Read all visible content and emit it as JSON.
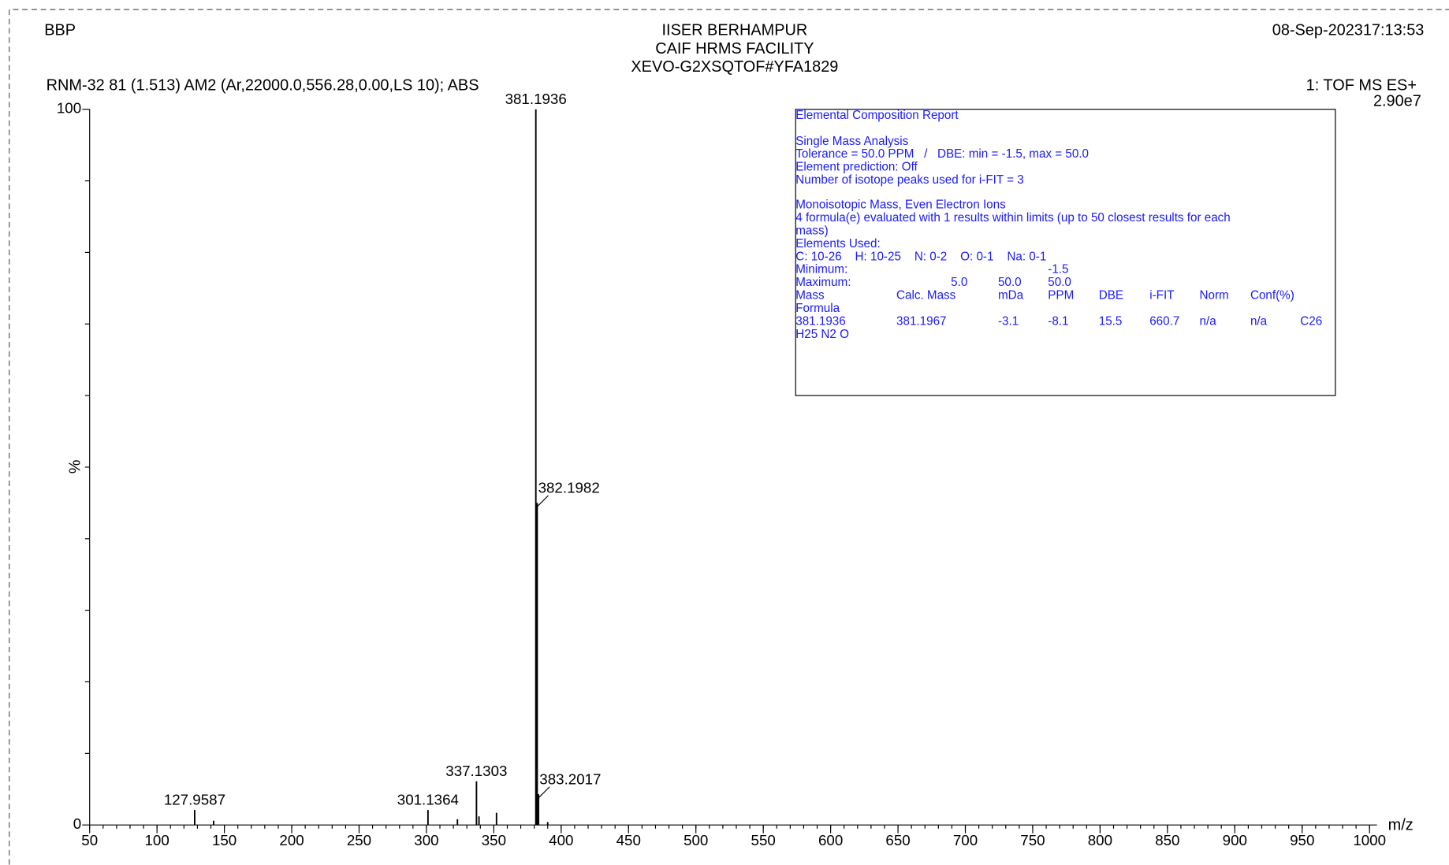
{
  "chart_data": {
    "type": "bar",
    "header": {
      "left": "BBP",
      "center": [
        "IISER BERHAMPUR",
        "CAIF HRMS FACILITY",
        "XEVO-G2XSQTOF#YFA1829"
      ],
      "right": "08-Sep-202317:13:53",
      "scan": "RNM-32 81 (1.513) AM2 (Ar,22000.0,556.28,0.00,LS 10); ABS",
      "function": "1: TOF MS ES+",
      "intensity": "2.90e7"
    },
    "ylabel": "%",
    "xlabel": "m/z",
    "x": [
      127.9587,
      142.0,
      301.1364,
      323.0,
      337.1303,
      339.0,
      352.0,
      381.1936,
      382.1982,
      383.2017,
      390.0
    ],
    "values": [
      2.1,
      0.6,
      2.1,
      0.8,
      6.1,
      1.2,
      1.7,
      100,
      45,
      4.3,
      0.4
    ],
    "color": "#000000",
    "xlim": [
      50,
      1000
    ],
    "xticks": [
      50,
      100,
      150,
      200,
      250,
      300,
      350,
      400,
      450,
      500,
      550,
      600,
      650,
      700,
      750,
      800,
      850,
      900,
      950,
      1000
    ],
    "ylim": [
      0,
      100
    ],
    "yticks": [
      0,
      100
    ],
    "report": {
      "title": "Elemental Composition Report",
      "settings": [
        "Single Mass Analysis",
        "Tolerance = 50.0 PPM   /   DBE: min = -1.5, max = 50.0",
        "Element prediction: Off",
        "Number of isotope peaks used for i-FIT = 3"
      ],
      "details": [
        "Monoisotopic Mass, Even Electron Ions",
        "4 formula(e) evaluated with 1 results within limits (up to 50 closest results for each",
        "mass)",
        "Elements Used:",
        "C: 10-26    H: 10-25    N: 0-2    O: 0-1    Na: 0-1"
      ],
      "rows": [
        [
          "Minimum:",
          null,
          null,
          "-1.5",
          null,
          null,
          null,
          null,
          null
        ],
        [
          "Maximum:",
          "5.0",
          "50.0",
          "50.0",
          null,
          null,
          null,
          null,
          null
        ],
        [
          "Mass",
          "Calc. Mass",
          "mDa",
          "PPM",
          "DBE",
          "i-FIT",
          "Norm",
          "Conf(%)",
          null
        ],
        [
          "Formula",
          null,
          null,
          null,
          null,
          null,
          null,
          null,
          null
        ],
        [
          "381.1936",
          "381.1967",
          "-3.1",
          "-8.1",
          "15.5",
          "660.7",
          "n/a",
          "n/a",
          "C26"
        ],
        [
          "H25 N2 O",
          null,
          null,
          null,
          null,
          null,
          null,
          null,
          null
        ]
      ]
    }
  }
}
